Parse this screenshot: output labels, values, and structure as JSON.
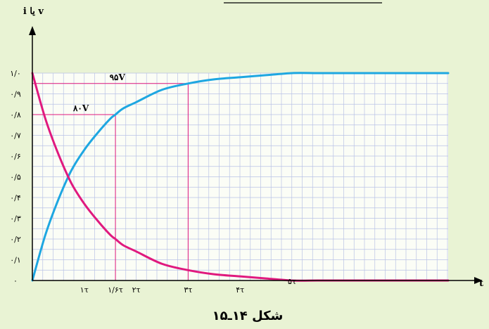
{
  "chart_data": {
    "type": "line",
    "caption": "شکل ۱۴ـ۱۵",
    "ylabel": "i یا v",
    "xlabel": "t",
    "ylim": [
      0,
      1.0
    ],
    "xlim": [
      0,
      6
    ],
    "grid": true,
    "y_ticks": [
      {
        "value": 0.0,
        "label": "۰"
      },
      {
        "value": 0.1,
        "label": "۰/۱"
      },
      {
        "value": 0.2,
        "label": "۰/۲"
      },
      {
        "value": 0.3,
        "label": "۰/۳"
      },
      {
        "value": 0.4,
        "label": "۰/۴"
      },
      {
        "value": 0.5,
        "label": "۰/۵"
      },
      {
        "value": 0.6,
        "label": "۰/۶"
      },
      {
        "value": 0.7,
        "label": "۰/۷"
      },
      {
        "value": 0.8,
        "label": "۰/۸"
      },
      {
        "value": 0.9,
        "label": "۰/۹"
      },
      {
        "value": 1.0,
        "label": "۱/۰"
      }
    ],
    "x_ticks": [
      {
        "value": 1.0,
        "label": "۱τ"
      },
      {
        "value": 1.6,
        "label": "۱/۶τ"
      },
      {
        "value": 2.0,
        "label": "۲τ"
      },
      {
        "value": 3.0,
        "label": "۳τ"
      },
      {
        "value": 4.0,
        "label": "۴τ"
      },
      {
        "value": 5.0,
        "label": "۵τ"
      }
    ],
    "series": [
      {
        "key": "rising",
        "color": "#1ea7e1",
        "x": [
          0,
          0.25,
          0.5,
          0.75,
          1.0,
          1.25,
          1.5,
          1.6,
          1.75,
          2.0,
          2.5,
          3.0,
          3.5,
          4.0,
          4.5,
          5.0,
          5.5,
          6.0
        ],
        "values": [
          0,
          0.22,
          0.39,
          0.53,
          0.63,
          0.71,
          0.78,
          0.8,
          0.83,
          0.86,
          0.92,
          0.95,
          0.97,
          0.98,
          0.99,
          1.0,
          1.0,
          1.0
        ]
      },
      {
        "key": "decaying",
        "color": "#e0197e",
        "x": [
          0,
          0.25,
          0.5,
          0.75,
          1.0,
          1.25,
          1.5,
          1.6,
          1.75,
          2.0,
          2.5,
          3.0,
          3.5,
          4.0,
          4.5,
          5.0,
          5.5,
          6.0
        ],
        "values": [
          1.0,
          0.78,
          0.61,
          0.47,
          0.37,
          0.29,
          0.22,
          0.2,
          0.17,
          0.14,
          0.08,
          0.05,
          0.03,
          0.02,
          0.01,
          0.0,
          0.0,
          0.0
        ]
      }
    ],
    "annotations": [
      {
        "label": "۸۰V",
        "x": 1.6,
        "y": 0.8,
        "color": "#e0197e"
      },
      {
        "label": "۹۵V",
        "x": 3.0,
        "y": 0.95,
        "color": "#e0197e"
      }
    ],
    "colors": {
      "background": "#e9f3d4",
      "plot_background": "#fbfdf6",
      "grid": "#b9c2e6",
      "axis": "#000000"
    }
  }
}
